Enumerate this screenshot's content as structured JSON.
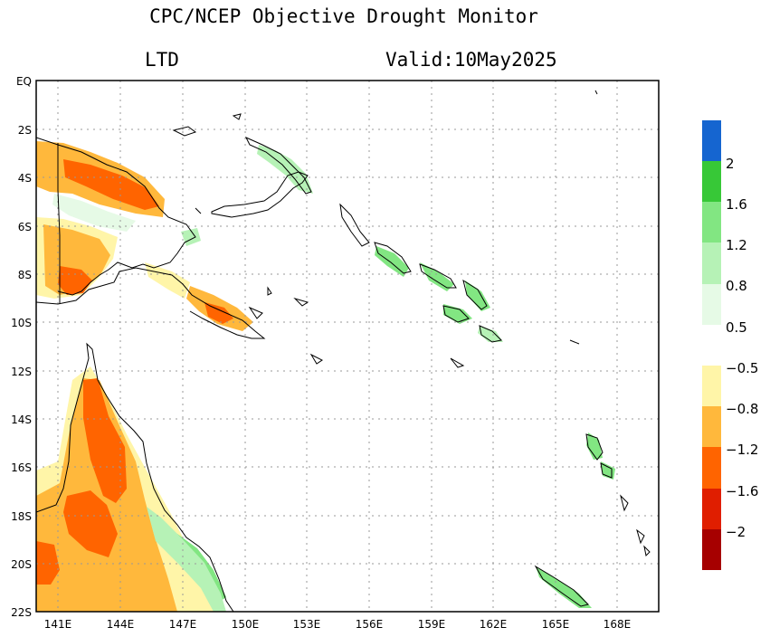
{
  "title": "CPC/NCEP Objective Drought Monitor",
  "index_label": "LTD",
  "valid_label": "Valid:10May2025",
  "lat_ticks": [
    "EQ",
    "2S",
    "4S",
    "6S",
    "8S",
    "10S",
    "12S",
    "14S",
    "16S",
    "18S",
    "20S",
    "22S"
  ],
  "lon_ticks": [
    "141E",
    "144E",
    "147E",
    "150E",
    "153E",
    "156E",
    "159E",
    "162E",
    "165E",
    "168E"
  ],
  "legend_wet": {
    "colors": [
      "#1565d0",
      "#37c837",
      "#82e682",
      "#b6f2b6",
      "#e6fae6"
    ],
    "labels": [
      "2",
      "1.6",
      "1.2",
      "0.8",
      "0.5"
    ]
  },
  "legend_dry": {
    "colors": [
      "#fff5a8",
      "#ffb83c",
      "#ff6400",
      "#e01e00",
      "#a60000"
    ],
    "labels": [
      "−0.5",
      "−0.8",
      "−1.2",
      "−1.6",
      "−2"
    ]
  }
}
